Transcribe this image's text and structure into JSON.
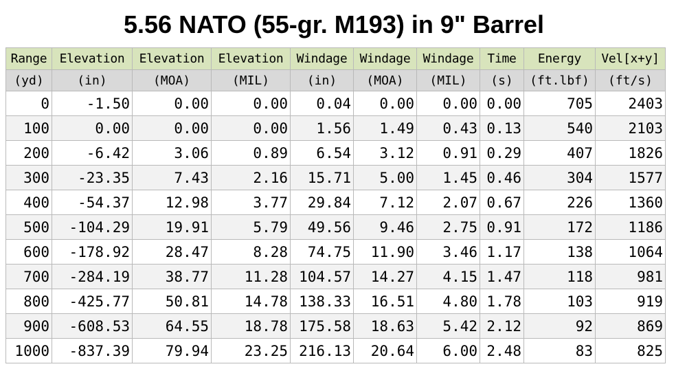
{
  "title": "5.56 NATO (55-gr. M193) in 9\" Barrel",
  "table": {
    "headers": [
      "Range",
      "Elevation",
      "Elevation",
      "Elevation",
      "Windage",
      "Windage",
      "Windage",
      "Time",
      "Energy",
      "Vel[x+y]"
    ],
    "units": [
      "(yd)",
      "(in)",
      "(MOA)",
      "(MIL)",
      "(in)",
      "(MOA)",
      "(MIL)",
      "(s)",
      "(ft.lbf)",
      "(ft/s)"
    ],
    "rows": [
      [
        "0",
        "-1.50",
        "0.00",
        "0.00",
        "0.04",
        "0.00",
        "0.00",
        "0.00",
        "705",
        "2403"
      ],
      [
        "100",
        "0.00",
        "0.00",
        "0.00",
        "1.56",
        "1.49",
        "0.43",
        "0.13",
        "540",
        "2103"
      ],
      [
        "200",
        "-6.42",
        "3.06",
        "0.89",
        "6.54",
        "3.12",
        "0.91",
        "0.29",
        "407",
        "1826"
      ],
      [
        "300",
        "-23.35",
        "7.43",
        "2.16",
        "15.71",
        "5.00",
        "1.45",
        "0.46",
        "304",
        "1577"
      ],
      [
        "400",
        "-54.37",
        "12.98",
        "3.77",
        "29.84",
        "7.12",
        "2.07",
        "0.67",
        "226",
        "1360"
      ],
      [
        "500",
        "-104.29",
        "19.91",
        "5.79",
        "49.56",
        "9.46",
        "2.75",
        "0.91",
        "172",
        "1186"
      ],
      [
        "600",
        "-178.92",
        "28.47",
        "8.28",
        "74.75",
        "11.90",
        "3.46",
        "1.17",
        "138",
        "1064"
      ],
      [
        "700",
        "-284.19",
        "38.77",
        "11.28",
        "104.57",
        "14.27",
        "4.15",
        "1.47",
        "118",
        "981"
      ],
      [
        "800",
        "-425.77",
        "50.81",
        "14.78",
        "138.33",
        "16.51",
        "4.80",
        "1.78",
        "103",
        "919"
      ],
      [
        "900",
        "-608.53",
        "64.55",
        "18.78",
        "175.58",
        "18.63",
        "5.42",
        "2.12",
        "92",
        "869"
      ],
      [
        "1000",
        "-837.39",
        "79.94",
        "23.25",
        "216.13",
        "20.64",
        "6.00",
        "2.48",
        "83",
        "825"
      ]
    ]
  },
  "colors": {
    "header_bg": "#d8e4bc",
    "units_bg": "#d9d9d9",
    "stripe_bg": "#f2f2f2",
    "border": "#b9b9b9"
  }
}
